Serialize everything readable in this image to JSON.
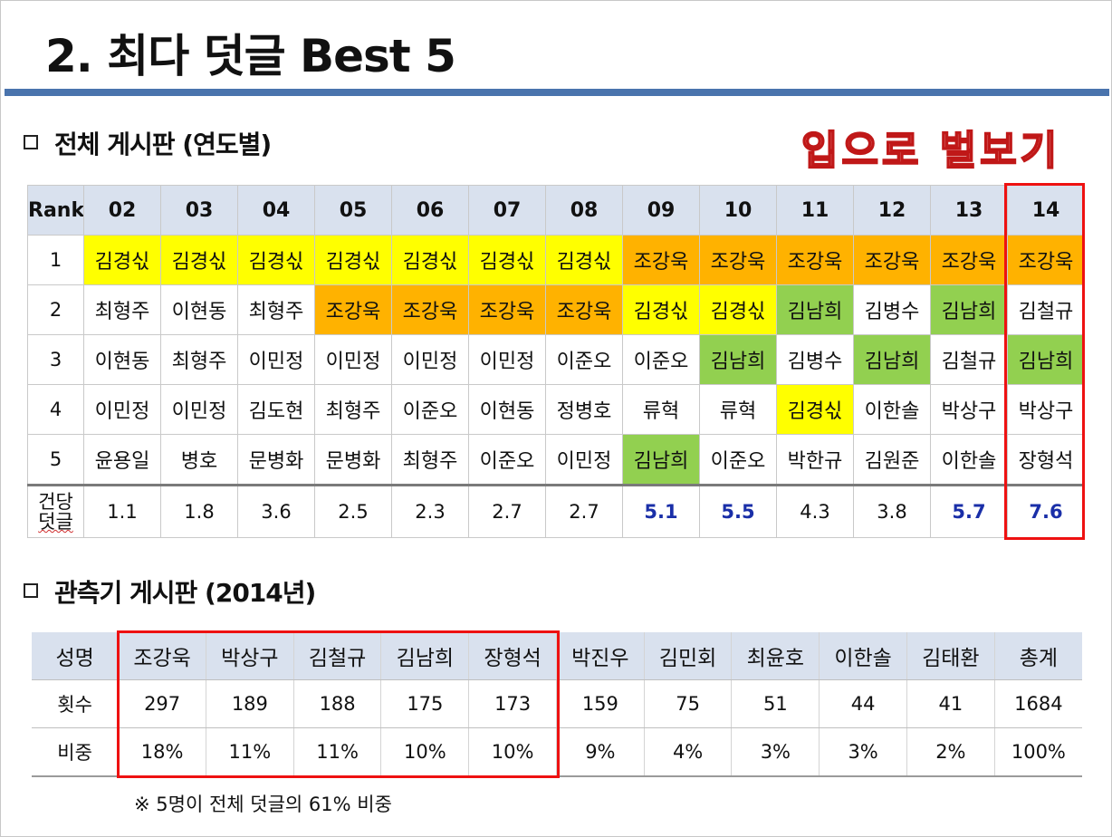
{
  "title": "2. 최다 덧글 Best 5",
  "wordart": "입으로 벌보기",
  "section1": {
    "heading": "전체 게시판 (연도별)"
  },
  "table1": {
    "rank_header": "Rank",
    "years": [
      "02",
      "03",
      "04",
      "05",
      "06",
      "07",
      "08",
      "09",
      "10",
      "11",
      "12",
      "13",
      "14"
    ],
    "rows": [
      {
        "rank": "1",
        "names": [
          "김경싟",
          "김경싟",
          "김경싟",
          "김경싟",
          "김경싟",
          "김경싟",
          "김경싟",
          "조강욱",
          "조강욱",
          "조강욱",
          "조강욱",
          "조강욱",
          "조강욱"
        ]
      },
      {
        "rank": "2",
        "names": [
          "최형주",
          "이현동",
          "최형주",
          "조강욱",
          "조강욱",
          "조강욱",
          "조강욱",
          "김경싟",
          "김경싟",
          "김남희",
          "김병수",
          "김남희",
          "김철규"
        ]
      },
      {
        "rank": "3",
        "names": [
          "이현동",
          "최형주",
          "이민정",
          "이민정",
          "이민정",
          "이민정",
          "이준오",
          "이준오",
          "김남희",
          "김병수",
          "김남희",
          "김철규",
          "김남희"
        ]
      },
      {
        "rank": "4",
        "names": [
          "이민정",
          "이민정",
          "김도현",
          "최형주",
          "이준오",
          "이현동",
          "정병호",
          "류혁",
          "류혁",
          "김경싟",
          "이한솔",
          "박상구",
          "박상구"
        ]
      },
      {
        "rank": "5",
        "names": [
          "윤용일",
          "병호",
          "문병화",
          "문병화",
          "최형주",
          "이준오",
          "이민정",
          "김남희",
          "이준오",
          "박한규",
          "김원준",
          "이한솔",
          "장형석"
        ]
      }
    ],
    "avg_label_1": "건당",
    "avg_label_2": "덧글",
    "averages": [
      "1.1",
      "1.8",
      "3.6",
      "2.5",
      "2.3",
      "2.7",
      "2.7",
      "5.1",
      "5.5",
      "4.3",
      "3.8",
      "5.7",
      "7.6"
    ]
  },
  "highlight_colors": {
    "yellow": "#ffff00",
    "orange": "#ffb200",
    "green": "#92d050",
    "blue_text": "#1a2fa8",
    "red_box": "#ee1111"
  },
  "section2": {
    "heading": "관측기 게시판 (2014년)"
  },
  "table2": {
    "label_name": "성명",
    "label_count": "횟수",
    "label_ratio": "비중",
    "names": [
      "조강욱",
      "박상구",
      "김철규",
      "김남희",
      "장형석",
      "박진우",
      "김민회",
      "최윤호",
      "이한솔",
      "김태환",
      "총계"
    ],
    "counts": [
      "297",
      "189",
      "188",
      "175",
      "173",
      "159",
      "75",
      "51",
      "44",
      "41",
      "1684"
    ],
    "ratios": [
      "18%",
      "11%",
      "11%",
      "10%",
      "10%",
      "9%",
      "4%",
      "3%",
      "3%",
      "2%",
      "100%"
    ]
  },
  "note": "※ 5명이 전체 덧글의 61% 비중"
}
